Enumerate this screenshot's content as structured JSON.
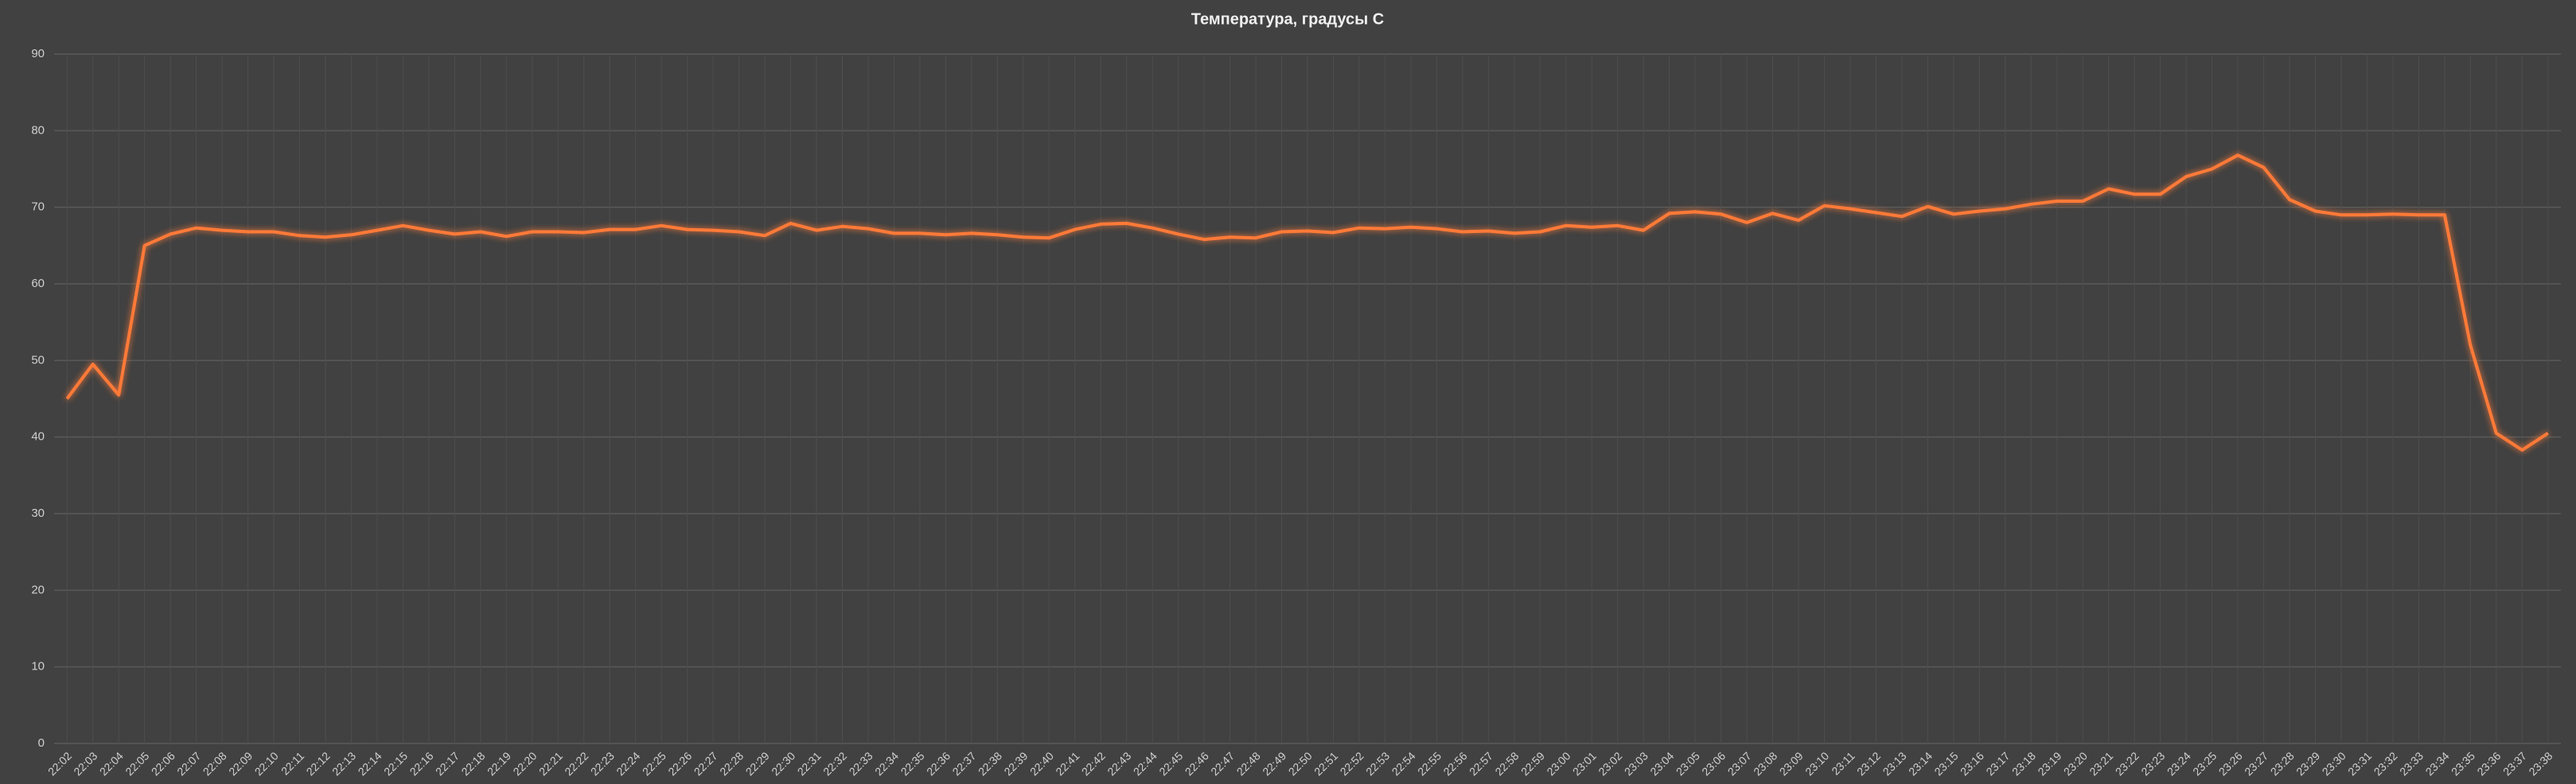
{
  "chart_data": {
    "type": "line",
    "title": "Температура, градусы С",
    "categories": [
      "22:02",
      "22:03",
      "22:04",
      "22:05",
      "22:06",
      "22:07",
      "22:08",
      "22:09",
      "22:10",
      "22:11",
      "22:12",
      "22:13",
      "22:14",
      "22:15",
      "22:16",
      "22:17",
      "22:18",
      "22:19",
      "22:20",
      "22:21",
      "22:22",
      "22:23",
      "22:24",
      "22:25",
      "22:26",
      "22:27",
      "22:28",
      "22:29",
      "22:30",
      "22:31",
      "22:32",
      "22:33",
      "22:34",
      "22:35",
      "22:36",
      "22:37",
      "22:38",
      "22:39",
      "22:40",
      "22:41",
      "22:42",
      "22:43",
      "22:44",
      "22:45",
      "22:46",
      "22:47",
      "22:48",
      "22:49",
      "22:50",
      "22:51",
      "22:52",
      "22:53",
      "22:54",
      "22:55",
      "22:56",
      "22:57",
      "22:58",
      "22:59",
      "23:00",
      "23:01",
      "23:02",
      "23:03",
      "23:04",
      "23:05",
      "23:06",
      "23:07",
      "23:08",
      "23:09",
      "23:10",
      "23:11",
      "23:12",
      "23:13",
      "23:14",
      "23:15",
      "23:16",
      "23:17",
      "23:18",
      "23:19",
      "23:20",
      "23:21",
      "23:22",
      "23:23",
      "23:24",
      "23:25",
      "23:26",
      "23:27",
      "23:28",
      "23:29",
      "23:30",
      "23:31",
      "23:32",
      "23:33",
      "23:34",
      "23:35",
      "23:36",
      "23:37",
      "23:38"
    ],
    "values": [
      45,
      49.5,
      45.5,
      65,
      66.5,
      67.3,
      67,
      66.8,
      66.8,
      66.3,
      66.1,
      66.4,
      67,
      67.6,
      67,
      66.5,
      66.8,
      66.2,
      66.8,
      66.8,
      66.7,
      67.1,
      67.1,
      67.6,
      67.1,
      67,
      66.8,
      66.3,
      67.9,
      67,
      67.5,
      67.2,
      66.6,
      66.6,
      66.4,
      66.6,
      66.4,
      66.1,
      66,
      67.1,
      67.8,
      67.9,
      67.3,
      66.5,
      65.8,
      66.1,
      66,
      66.8,
      66.9,
      66.7,
      67.3,
      67.2,
      67.4,
      67.2,
      66.8,
      66.9,
      66.6,
      66.8,
      67.6,
      67.4,
      67.6,
      67,
      69.2,
      69.4,
      69.1,
      68,
      69.2,
      68.3,
      70.2,
      69.8,
      69.3,
      68.8,
      70.1,
      69.1,
      69.5,
      69.8,
      70.4,
      70.8,
      70.8,
      72.4,
      71.7,
      71.7,
      74,
      75,
      76.8,
      75.2,
      71,
      69.5,
      69,
      69,
      69.1,
      69,
      69,
      52,
      40.5,
      38.3,
      40.5
    ],
    "color": "#ff7a38",
    "ylim": [
      0,
      90
    ],
    "yticks": [
      0,
      10,
      20,
      30,
      40,
      50,
      60,
      70,
      80,
      90
    ],
    "grid": true
  }
}
